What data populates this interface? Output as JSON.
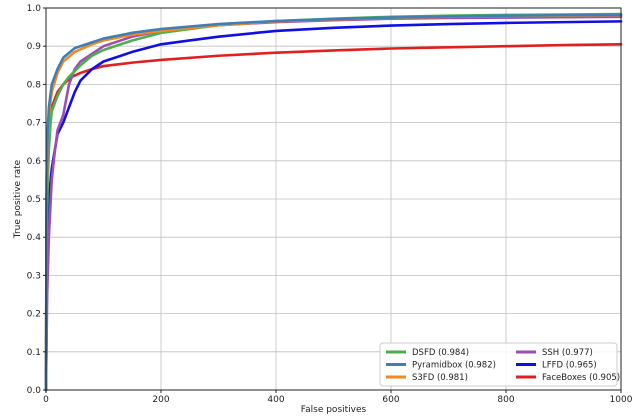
{
  "chart_data": {
    "type": "line",
    "title": "",
    "xlabel": "False positives",
    "ylabel": "True positive rate",
    "xlim": [
      0,
      1000
    ],
    "ylim": [
      0,
      1.0
    ],
    "xticks": [
      "0",
      "200",
      "400",
      "600",
      "800",
      "1000"
    ],
    "yticks": [
      "0.0",
      "0.1",
      "0.2",
      "0.3",
      "0.4",
      "0.5",
      "0.6",
      "0.7",
      "0.8",
      "0.9",
      "1.0"
    ],
    "grid": true,
    "legend_position": "bottom-right",
    "legend_columns": 2,
    "series": [
      {
        "name": "FaceBoxes (0.905)",
        "color": "#e02020",
        "points": [
          [
            0,
            0
          ],
          [
            1,
            0.45
          ],
          [
            3,
            0.62
          ],
          [
            6,
            0.7
          ],
          [
            10,
            0.74
          ],
          [
            20,
            0.78
          ],
          [
            30,
            0.8
          ],
          [
            45,
            0.82
          ],
          [
            60,
            0.83
          ],
          [
            80,
            0.84
          ],
          [
            100,
            0.848
          ],
          [
            150,
            0.857
          ],
          [
            200,
            0.864
          ],
          [
            300,
            0.875
          ],
          [
            400,
            0.883
          ],
          [
            500,
            0.889
          ],
          [
            600,
            0.894
          ],
          [
            700,
            0.897
          ],
          [
            800,
            0.9
          ],
          [
            900,
            0.903
          ],
          [
            1000,
            0.905
          ]
        ]
      },
      {
        "name": "LFFD (0.965)",
        "color": "#1010e6",
        "points": [
          [
            0,
            0
          ],
          [
            2,
            0.35
          ],
          [
            5,
            0.5
          ],
          [
            10,
            0.58
          ],
          [
            20,
            0.67
          ],
          [
            30,
            0.7
          ],
          [
            40,
            0.74
          ],
          [
            50,
            0.78
          ],
          [
            60,
            0.81
          ],
          [
            80,
            0.84
          ],
          [
            100,
            0.86
          ],
          [
            150,
            0.885
          ],
          [
            200,
            0.905
          ],
          [
            250,
            0.915
          ],
          [
            300,
            0.925
          ],
          [
            400,
            0.94
          ],
          [
            500,
            0.948
          ],
          [
            600,
            0.954
          ],
          [
            700,
            0.958
          ],
          [
            800,
            0.961
          ],
          [
            900,
            0.963
          ],
          [
            1000,
            0.965
          ]
        ]
      },
      {
        "name": "SSH (0.977)",
        "color": "#9b50b0",
        "points": [
          [
            0,
            0
          ],
          [
            2,
            0.25
          ],
          [
            5,
            0.4
          ],
          [
            10,
            0.55
          ],
          [
            15,
            0.62
          ],
          [
            20,
            0.68
          ],
          [
            30,
            0.72
          ],
          [
            40,
            0.8
          ],
          [
            50,
            0.84
          ],
          [
            60,
            0.86
          ],
          [
            80,
            0.88
          ],
          [
            100,
            0.9
          ],
          [
            150,
            0.925
          ],
          [
            200,
            0.94
          ],
          [
            300,
            0.955
          ],
          [
            400,
            0.963
          ],
          [
            500,
            0.968
          ],
          [
            600,
            0.972
          ],
          [
            700,
            0.974
          ],
          [
            800,
            0.975
          ],
          [
            900,
            0.976
          ],
          [
            1000,
            0.977
          ]
        ]
      },
      {
        "name": "DSFD (0.984)",
        "color": "#4caf50",
        "points": [
          [
            0,
            0
          ],
          [
            1,
            0.4
          ],
          [
            3,
            0.55
          ],
          [
            5,
            0.63
          ],
          [
            8,
            0.7
          ],
          [
            10,
            0.73
          ],
          [
            20,
            0.77
          ],
          [
            30,
            0.8
          ],
          [
            40,
            0.82
          ],
          [
            60,
            0.85
          ],
          [
            80,
            0.875
          ],
          [
            100,
            0.89
          ],
          [
            150,
            0.915
          ],
          [
            200,
            0.935
          ],
          [
            300,
            0.955
          ],
          [
            400,
            0.966
          ],
          [
            500,
            0.972
          ],
          [
            600,
            0.977
          ],
          [
            700,
            0.98
          ],
          [
            800,
            0.982
          ],
          [
            900,
            0.983
          ],
          [
            1000,
            0.984
          ]
        ]
      },
      {
        "name": "S3FD (0.981)",
        "color": "#f5891e",
        "points": [
          [
            0,
            0
          ],
          [
            1,
            0.5
          ],
          [
            3,
            0.65
          ],
          [
            5,
            0.72
          ],
          [
            10,
            0.78
          ],
          [
            20,
            0.83
          ],
          [
            30,
            0.86
          ],
          [
            50,
            0.885
          ],
          [
            80,
            0.905
          ],
          [
            100,
            0.915
          ],
          [
            150,
            0.93
          ],
          [
            200,
            0.94
          ],
          [
            300,
            0.955
          ],
          [
            400,
            0.965
          ],
          [
            500,
            0.97
          ],
          [
            600,
            0.974
          ],
          [
            700,
            0.977
          ],
          [
            800,
            0.979
          ],
          [
            900,
            0.98
          ],
          [
            1000,
            0.981
          ]
        ]
      },
      {
        "name": "Pyramidbox (0.982)",
        "color": "#3f7fb8",
        "points": [
          [
            0,
            0
          ],
          [
            1,
            0.55
          ],
          [
            3,
            0.68
          ],
          [
            5,
            0.74
          ],
          [
            10,
            0.8
          ],
          [
            20,
            0.84
          ],
          [
            30,
            0.87
          ],
          [
            50,
            0.895
          ],
          [
            80,
            0.91
          ],
          [
            100,
            0.92
          ],
          [
            150,
            0.935
          ],
          [
            200,
            0.945
          ],
          [
            300,
            0.958
          ],
          [
            400,
            0.966
          ],
          [
            500,
            0.971
          ],
          [
            600,
            0.975
          ],
          [
            700,
            0.978
          ],
          [
            800,
            0.98
          ],
          [
            900,
            0.981
          ],
          [
            1000,
            0.982
          ]
        ]
      }
    ],
    "legend_order": [
      "DSFD (0.984)",
      "SSH (0.977)",
      "Pyramidbox (0.982)",
      "LFFD (0.965)",
      "S3FD (0.981)",
      "FaceBoxes (0.905)"
    ]
  }
}
